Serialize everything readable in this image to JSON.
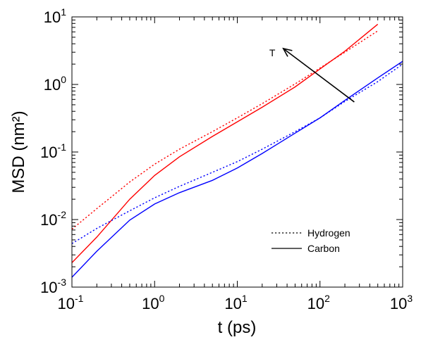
{
  "chart_data": {
    "type": "line",
    "xlabel": "t (ps)",
    "ylabel": "MSD (nm²)",
    "x_scale": "log",
    "y_scale": "log",
    "xlim": [
      0.1,
      1000
    ],
    "ylim": [
      0.001,
      10
    ],
    "x_ticks": [
      {
        "value": 0.1,
        "base": "10",
        "exp": "-1"
      },
      {
        "value": 1,
        "base": "10",
        "exp": "0"
      },
      {
        "value": 10,
        "base": "10",
        "exp": "1"
      },
      {
        "value": 100,
        "base": "10",
        "exp": "2"
      },
      {
        "value": 1000,
        "base": "10",
        "exp": "3"
      }
    ],
    "y_ticks": [
      {
        "value": 0.001,
        "base": "10",
        "exp": "-3"
      },
      {
        "value": 0.01,
        "base": "10",
        "exp": "-2"
      },
      {
        "value": 0.1,
        "base": "10",
        "exp": "-1"
      },
      {
        "value": 1,
        "base": "10",
        "exp": "0"
      },
      {
        "value": 10,
        "base": "10",
        "exp": "1"
      }
    ],
    "grid": false,
    "legend": {
      "placement": "bottom-right",
      "entries": [
        {
          "label": "Hydrogen",
          "style": "dotted"
        },
        {
          "label": "Carbon",
          "style": "solid"
        }
      ]
    },
    "series": [
      {
        "element": "Hydrogen",
        "temperature": "high",
        "color": "#ff0000",
        "style": "dotted",
        "x": [
          0.1,
          0.2,
          0.5,
          1,
          2,
          5,
          10,
          20,
          50,
          100,
          200,
          500
        ],
        "y": [
          0.0072,
          0.0145,
          0.036,
          0.066,
          0.11,
          0.2,
          0.32,
          0.52,
          1.02,
          1.75,
          3.0,
          6.2
        ]
      },
      {
        "element": "Carbon",
        "temperature": "high",
        "color": "#ff0000",
        "style": "solid",
        "x": [
          0.1,
          0.2,
          0.5,
          1,
          2,
          5,
          10,
          20,
          50,
          100,
          200,
          500
        ],
        "y": [
          0.0023,
          0.0055,
          0.02,
          0.045,
          0.085,
          0.17,
          0.28,
          0.46,
          0.92,
          1.7,
          3.1,
          7.8
        ]
      },
      {
        "element": "Hydrogen",
        "temperature": "low",
        "color": "#0000ff",
        "style": "dotted",
        "x": [
          0.1,
          0.2,
          0.5,
          1,
          2,
          5,
          10,
          20,
          50,
          100,
          200,
          500,
          1000
        ],
        "y": [
          0.0044,
          0.0074,
          0.0135,
          0.021,
          0.031,
          0.05,
          0.072,
          0.11,
          0.2,
          0.32,
          0.56,
          1.1,
          2.0
        ]
      },
      {
        "element": "Carbon",
        "temperature": "low",
        "color": "#0000ff",
        "style": "solid",
        "x": [
          0.1,
          0.2,
          0.5,
          1,
          2,
          5,
          10,
          20,
          50,
          100,
          200,
          500,
          1000
        ],
        "y": [
          0.0014,
          0.0034,
          0.0098,
          0.017,
          0.025,
          0.038,
          0.058,
          0.095,
          0.19,
          0.32,
          0.58,
          1.25,
          2.2
        ]
      }
    ],
    "annotation": {
      "text": "T",
      "arrow_from": {
        "x": 260,
        "y": 0.55
      },
      "arrow_to": {
        "x": 36,
        "y": 3.4
      },
      "label_at": {
        "x": 30,
        "y": 2.6
      }
    }
  }
}
